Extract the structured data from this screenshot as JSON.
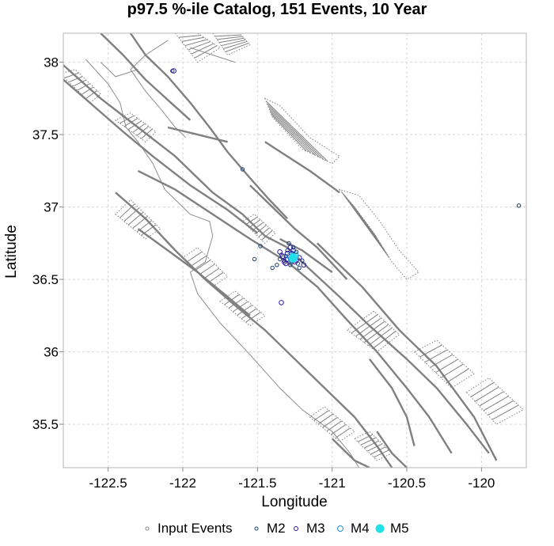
{
  "chart_data": {
    "type": "scatter",
    "title": "p97.5 %-ile Catalog, 151 Events, 10 Year",
    "xlabel": "Longitude",
    "ylabel": "Latitude",
    "xlim": [
      -122.8,
      -119.7
    ],
    "ylim": [
      35.2,
      38.2
    ],
    "x_ticks": [
      -122.5,
      -122,
      -121.5,
      -121,
      -120.5,
      -120
    ],
    "y_ticks": [
      35.5,
      36,
      36.5,
      37,
      37.5,
      38
    ],
    "grid": true,
    "legend_position": "bottom",
    "legend": [
      {
        "label": "Input Events",
        "color": "#888888",
        "style": "open-circle"
      },
      {
        "label": "M2",
        "color": "#1a3c6e",
        "style": "open-circle"
      },
      {
        "label": "M3",
        "color": "#2b1aa0",
        "style": "open-circle"
      },
      {
        "label": "M4",
        "color": "#1e8fd6",
        "style": "open-circle"
      },
      {
        "label": "M5",
        "color": "#22e0e8",
        "style": "filled-circle"
      }
    ],
    "series": [
      {
        "name": "M2",
        "color": "#1a3c6e",
        "points": [
          [
            -122.07,
            37.94
          ],
          [
            -121.6,
            37.26
          ],
          [
            -119.75,
            37.01
          ],
          [
            -121.52,
            36.64
          ],
          [
            -121.4,
            36.58
          ],
          [
            -121.29,
            36.75
          ],
          [
            -121.26,
            36.72
          ],
          [
            -121.22,
            36.58
          ],
          [
            -121.37,
            36.6
          ],
          [
            -121.48,
            36.73
          ],
          [
            -121.32,
            36.63
          ],
          [
            -121.28,
            36.6
          ],
          [
            -121.24,
            36.69
          ],
          [
            -121.34,
            36.67
          ],
          [
            -121.2,
            36.63
          ],
          [
            -121.3,
            36.7
          ],
          [
            -121.23,
            36.61
          ],
          [
            -121.35,
            36.64
          ],
          [
            -121.27,
            36.62
          ],
          [
            -121.31,
            36.66
          ]
        ]
      },
      {
        "name": "M3",
        "color": "#2b1aa0",
        "points": [
          [
            -122.06,
            37.94
          ],
          [
            -121.34,
            36.34
          ],
          [
            -121.33,
            36.66
          ],
          [
            -121.3,
            36.64
          ],
          [
            -121.27,
            36.68
          ],
          [
            -121.25,
            36.62
          ],
          [
            -121.31,
            36.61
          ],
          [
            -121.22,
            36.65
          ],
          [
            -121.28,
            36.72
          ],
          [
            -121.35,
            36.69
          ],
          [
            -121.19,
            36.6
          ],
          [
            -121.3,
            36.68
          ],
          [
            -121.26,
            36.7
          ],
          [
            -121.24,
            36.63
          ],
          [
            -121.32,
            36.62
          ]
        ]
      },
      {
        "name": "M4",
        "color": "#1e8fd6",
        "points": [
          [
            -121.28,
            36.66
          ],
          [
            -121.25,
            36.67
          ],
          [
            -121.27,
            36.64
          ]
        ]
      },
      {
        "name": "M5",
        "color": "#22e0e8",
        "points": [
          [
            -121.26,
            36.65
          ]
        ]
      }
    ]
  },
  "map_layers": {
    "fault_color": "#808080",
    "coastline_color": "#8c8c8c",
    "faults": [
      [
        [
          -122.8,
          37.98
        ],
        [
          -122.55,
          37.75
        ],
        [
          -122.3,
          37.55
        ],
        [
          -122.05,
          37.35
        ],
        [
          -121.8,
          37.1
        ],
        [
          -121.6,
          36.95
        ],
        [
          -121.45,
          36.8
        ],
        [
          -121.3,
          36.72
        ],
        [
          -121.15,
          36.57
        ],
        [
          -120.95,
          36.38
        ],
        [
          -120.75,
          36.18
        ],
        [
          -120.5,
          35.95
        ],
        [
          -120.3,
          35.75
        ],
        [
          -120.1,
          35.5
        ],
        [
          -119.95,
          35.3
        ]
      ],
      [
        [
          -122.8,
          37.88
        ],
        [
          -122.6,
          37.7
        ],
        [
          -122.4,
          37.52
        ],
        [
          -122.2,
          37.35
        ],
        [
          -121.95,
          37.15
        ],
        [
          -121.7,
          36.98
        ],
        [
          -121.5,
          36.82
        ]
      ],
      [
        [
          -122.35,
          38.2
        ],
        [
          -122.25,
          38.05
        ],
        [
          -122.1,
          37.9
        ],
        [
          -121.95,
          37.72
        ],
        [
          -121.82,
          37.55
        ],
        [
          -121.7,
          37.38
        ],
        [
          -121.55,
          37.2
        ],
        [
          -121.42,
          37.05
        ],
        [
          -121.3,
          36.92
        ]
      ],
      [
        [
          -122.55,
          38.2
        ],
        [
          -122.4,
          38.05
        ],
        [
          -122.25,
          37.88
        ],
        [
          -122.08,
          37.72
        ],
        [
          -121.95,
          37.6
        ]
      ],
      [
        [
          -121.55,
          37.15
        ],
        [
          -121.4,
          37.0
        ],
        [
          -121.25,
          36.85
        ],
        [
          -121.1,
          36.72
        ],
        [
          -120.9,
          36.5
        ]
      ],
      [
        [
          -122.3,
          37.25
        ],
        [
          -122.05,
          37.12
        ],
        [
          -121.8,
          36.95
        ],
        [
          -121.55,
          36.78
        ],
        [
          -121.3,
          36.62
        ],
        [
          -121.1,
          36.45
        ],
        [
          -120.9,
          36.22
        ],
        [
          -120.7,
          36.0
        ],
        [
          -120.5,
          35.75
        ],
        [
          -120.35,
          35.55
        ],
        [
          -120.2,
          35.3
        ]
      ],
      [
        [
          -122.45,
          37.1
        ],
        [
          -122.25,
          36.92
        ],
        [
          -122.05,
          36.7
        ],
        [
          -121.85,
          36.5
        ],
        [
          -121.65,
          36.32
        ],
        [
          -121.45,
          36.15
        ],
        [
          -121.25,
          35.95
        ],
        [
          -121.05,
          35.75
        ],
        [
          -120.85,
          35.55
        ],
        [
          -120.7,
          35.35
        ],
        [
          -120.6,
          35.2
        ]
      ],
      [
        [
          -122.3,
          36.85
        ],
        [
          -122.1,
          36.7
        ],
        [
          -121.9,
          36.55
        ],
        [
          -121.7,
          36.38
        ],
        [
          -121.55,
          36.25
        ]
      ],
      [
        [
          -121.1,
          36.75
        ],
        [
          -120.95,
          36.6
        ],
        [
          -120.8,
          36.45
        ],
        [
          -120.55,
          36.15
        ],
        [
          -120.3,
          35.9
        ],
        [
          -120.05,
          35.55
        ],
        [
          -119.9,
          35.25
        ]
      ],
      [
        [
          -120.75,
          35.95
        ],
        [
          -120.6,
          35.75
        ],
        [
          -120.5,
          35.55
        ],
        [
          -120.45,
          35.35
        ]
      ],
      [
        [
          -121.45,
          37.45
        ],
        [
          -121.3,
          37.35
        ],
        [
          -121.15,
          37.25
        ],
        [
          -120.95,
          37.1
        ]
      ],
      [
        [
          -121.35,
          36.78
        ],
        [
          -121.2,
          36.7
        ],
        [
          -121.0,
          36.55
        ]
      ],
      [
        [
          -122.1,
          37.55
        ],
        [
          -121.9,
          37.5
        ],
        [
          -121.7,
          37.45
        ]
      ],
      [
        [
          -120.7,
          35.45
        ],
        [
          -120.6,
          35.3
        ],
        [
          -120.5,
          35.2
        ]
      ],
      [
        [
          -121.0,
          35.4
        ],
        [
          -120.85,
          35.25
        ],
        [
          -120.75,
          35.2
        ]
      ]
    ],
    "coastline": [
      [
        [
          -122.65,
          38.02
        ],
        [
          -122.5,
          37.85
        ],
        [
          -122.42,
          37.72
        ],
        [
          -122.38,
          37.55
        ],
        [
          -122.3,
          37.45
        ],
        [
          -122.2,
          37.3
        ],
        [
          -122.12,
          37.12
        ],
        [
          -121.95,
          36.95
        ],
        [
          -121.82,
          36.9
        ],
        [
          -121.8,
          36.8
        ],
        [
          -121.85,
          36.62
        ],
        [
          -121.95,
          36.55
        ],
        [
          -121.9,
          36.4
        ],
        [
          -121.75,
          36.2
        ],
        [
          -121.55,
          35.98
        ],
        [
          -121.35,
          35.75
        ],
        [
          -121.2,
          35.6
        ],
        [
          -121.0,
          35.45
        ],
        [
          -120.88,
          35.3
        ],
        [
          -120.82,
          35.2
        ]
      ],
      [
        [
          -122.1,
          38.15
        ],
        [
          -122.25,
          38.05
        ],
        [
          -122.35,
          37.95
        ],
        [
          -122.25,
          37.8
        ],
        [
          -122.15,
          37.68
        ],
        [
          -122.05,
          37.55
        ],
        [
          -121.98,
          37.48
        ]
      ],
      [
        [
          -122.3,
          37.95
        ],
        [
          -122.45,
          37.9
        ],
        [
          -122.55,
          38.0
        ]
      ],
      [
        [
          -121.95,
          38.1
        ],
        [
          -121.8,
          38.05
        ],
        [
          -121.65,
          38.0
        ]
      ]
    ],
    "zones": [
      [
        [
          -122.82,
          37.92
        ],
        [
          -122.62,
          37.72
        ],
        [
          -122.55,
          37.78
        ],
        [
          -122.72,
          37.95
        ]
      ],
      [
        [
          -122.45,
          37.6
        ],
        [
          -122.25,
          37.45
        ],
        [
          -122.18,
          37.52
        ],
        [
          -122.35,
          37.65
        ]
      ],
      [
        [
          -122.05,
          38.2
        ],
        [
          -121.9,
          38.0
        ],
        [
          -121.75,
          38.1
        ],
        [
          -121.9,
          38.2
        ]
      ],
      [
        [
          -121.8,
          38.2
        ],
        [
          -121.7,
          38.05
        ],
        [
          -121.55,
          38.12
        ],
        [
          -121.62,
          38.2
        ]
      ],
      [
        [
          -121.45,
          37.75
        ],
        [
          -121.4,
          37.62
        ],
        [
          -121.2,
          37.4
        ],
        [
          -121.0,
          37.3
        ],
        [
          -120.95,
          37.35
        ],
        [
          -121.15,
          37.48
        ],
        [
          -121.35,
          37.7
        ]
      ],
      [
        [
          -120.95,
          37.12
        ],
        [
          -120.85,
          37.0
        ],
        [
          -120.72,
          36.82
        ],
        [
          -120.6,
          36.62
        ],
        [
          -120.5,
          36.5
        ],
        [
          -120.42,
          36.55
        ],
        [
          -120.55,
          36.7
        ],
        [
          -120.68,
          36.9
        ],
        [
          -120.82,
          37.08
        ]
      ],
      [
        [
          -120.9,
          36.15
        ],
        [
          -120.7,
          36.0
        ],
        [
          -120.55,
          36.12
        ],
        [
          -120.72,
          36.28
        ]
      ],
      [
        [
          -120.45,
          36.0
        ],
        [
          -120.2,
          35.75
        ],
        [
          -120.05,
          35.85
        ],
        [
          -120.3,
          36.08
        ]
      ],
      [
        [
          -120.1,
          35.72
        ],
        [
          -119.9,
          35.5
        ],
        [
          -119.72,
          35.6
        ],
        [
          -119.95,
          35.82
        ]
      ],
      [
        [
          -122.45,
          36.95
        ],
        [
          -122.25,
          36.78
        ],
        [
          -122.15,
          36.85
        ],
        [
          -122.35,
          37.05
        ]
      ],
      [
        [
          -122.0,
          36.65
        ],
        [
          -121.8,
          36.45
        ],
        [
          -121.7,
          36.52
        ],
        [
          -121.9,
          36.72
        ]
      ],
      [
        [
          -121.75,
          36.35
        ],
        [
          -121.55,
          36.18
        ],
        [
          -121.45,
          36.25
        ],
        [
          -121.65,
          36.42
        ]
      ],
      [
        [
          -121.15,
          35.55
        ],
        [
          -120.95,
          35.38
        ],
        [
          -120.85,
          35.45
        ],
        [
          -121.05,
          35.62
        ]
      ],
      [
        [
          -120.85,
          35.4
        ],
        [
          -120.7,
          35.25
        ],
        [
          -120.6,
          35.3
        ],
        [
          -120.75,
          35.45
        ]
      ],
      [
        [
          -121.6,
          36.9
        ],
        [
          -121.45,
          36.75
        ],
        [
          -121.38,
          36.82
        ],
        [
          -121.52,
          36.95
        ]
      ]
    ]
  }
}
